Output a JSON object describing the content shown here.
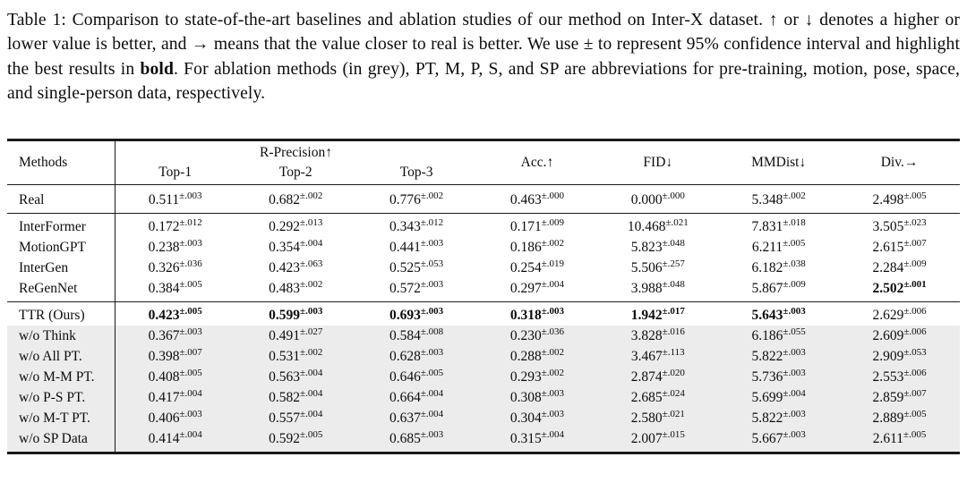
{
  "caption": {
    "part1": "Table 1: Comparison to state-of-the-art baselines and ablation studies of our method on Inter-X dataset. ↑ or ↓ denotes a higher or lower value is better, and → means that the value closer to real is better. We use ± to represent 95% confidence interval and highlight the best results in ",
    "bold_word": "bold",
    "part2": ". For ablation methods (in grey), PT, M, P, S, and SP are abbreviations for pre-training, motion, pose, space, and single-person data, respectively."
  },
  "table": {
    "methods_header": "Methods",
    "group_header": "R-Precision↑",
    "sub_headers": [
      "Top-1",
      "Top-2",
      "Top-3"
    ],
    "metric_headers": [
      "Acc.↑",
      "FID↓",
      "MMDist↓",
      "Div.→"
    ],
    "colors": {
      "ablation_row_bg": "#ececec",
      "rule_color": "#1a1a1a"
    },
    "chart_data": {
      "type": "table",
      "title": "Comparison to state-of-the-art baselines and ablation studies on Inter-X",
      "columns": [
        "Methods",
        "Top-1",
        "Top-2",
        "Top-3",
        "Acc.↑",
        "FID↓",
        "MMDist↓",
        "Div.→"
      ]
    },
    "rows": [
      {
        "method": "Real",
        "section": "real",
        "grey": false,
        "rule_above": false,
        "cells": [
          {
            "v": "0.511",
            "ci": "±.003",
            "b": false
          },
          {
            "v": "0.682",
            "ci": "±.002",
            "b": false
          },
          {
            "v": "0.776",
            "ci": "±.002",
            "b": false
          },
          {
            "v": "0.463",
            "ci": "±.000",
            "b": false
          },
          {
            "v": "0.000",
            "ci": "±.000",
            "b": false
          },
          {
            "v": "5.348",
            "ci": "±.002",
            "b": false
          },
          {
            "v": "2.498",
            "ci": "±.005",
            "b": false
          }
        ]
      },
      {
        "method": "InterFormer",
        "section": "baseline",
        "grey": false,
        "rule_above": true,
        "cells": [
          {
            "v": "0.172",
            "ci": "±.012",
            "b": false
          },
          {
            "v": "0.292",
            "ci": "±.013",
            "b": false
          },
          {
            "v": "0.343",
            "ci": "±.012",
            "b": false
          },
          {
            "v": "0.171",
            "ci": "±.009",
            "b": false
          },
          {
            "v": "10.468",
            "ci": "±.021",
            "b": false
          },
          {
            "v": "7.831",
            "ci": "±.018",
            "b": false
          },
          {
            "v": "3.505",
            "ci": "±.023",
            "b": false
          }
        ]
      },
      {
        "method": "MotionGPT",
        "section": "baseline",
        "grey": false,
        "rule_above": false,
        "cells": [
          {
            "v": "0.238",
            "ci": "±.003",
            "b": false
          },
          {
            "v": "0.354",
            "ci": "±.004",
            "b": false
          },
          {
            "v": "0.441",
            "ci": "±.003",
            "b": false
          },
          {
            "v": "0.186",
            "ci": "±.002",
            "b": false
          },
          {
            "v": "5.823",
            "ci": "±.048",
            "b": false
          },
          {
            "v": "6.211",
            "ci": "±.005",
            "b": false
          },
          {
            "v": "2.615",
            "ci": "±.007",
            "b": false
          }
        ]
      },
      {
        "method": "InterGen",
        "section": "baseline",
        "grey": false,
        "rule_above": false,
        "cells": [
          {
            "v": "0.326",
            "ci": "±.036",
            "b": false
          },
          {
            "v": "0.423",
            "ci": "±.063",
            "b": false
          },
          {
            "v": "0.525",
            "ci": "±.053",
            "b": false
          },
          {
            "v": "0.254",
            "ci": "±.019",
            "b": false
          },
          {
            "v": "5.506",
            "ci": "±.257",
            "b": false
          },
          {
            "v": "6.182",
            "ci": "±.038",
            "b": false
          },
          {
            "v": "2.284",
            "ci": "±.009",
            "b": false
          }
        ]
      },
      {
        "method": "ReGenNet",
        "section": "baseline",
        "grey": false,
        "rule_above": false,
        "cells": [
          {
            "v": "0.384",
            "ci": "±.005",
            "b": false
          },
          {
            "v": "0.483",
            "ci": "±.002",
            "b": false
          },
          {
            "v": "0.572",
            "ci": "±.003",
            "b": false
          },
          {
            "v": "0.297",
            "ci": "±.004",
            "b": false
          },
          {
            "v": "3.988",
            "ci": "±.048",
            "b": false
          },
          {
            "v": "5.867",
            "ci": "±.009",
            "b": false
          },
          {
            "v": "2.502",
            "ci": "±.001",
            "b": true
          }
        ]
      },
      {
        "method": "TTR (Ours)",
        "section": "ours",
        "grey": false,
        "rule_above": true,
        "cells": [
          {
            "v": "0.423",
            "ci": "±.005",
            "b": true
          },
          {
            "v": "0.599",
            "ci": "±.003",
            "b": true
          },
          {
            "v": "0.693",
            "ci": "±.003",
            "b": true
          },
          {
            "v": "0.318",
            "ci": "±.003",
            "b": true
          },
          {
            "v": "1.942",
            "ci": "±.017",
            "b": true
          },
          {
            "v": "5.643",
            "ci": "±.003",
            "b": true
          },
          {
            "v": "2.629",
            "ci": "±.006",
            "b": false
          }
        ]
      },
      {
        "method": "w/o Think",
        "section": "ablation",
        "grey": true,
        "rule_above": false,
        "cells": [
          {
            "v": "0.367",
            "ci": "±.003",
            "b": false
          },
          {
            "v": "0.491",
            "ci": "±.027",
            "b": false
          },
          {
            "v": "0.584",
            "ci": "±.008",
            "b": false
          },
          {
            "v": "0.230",
            "ci": "±.036",
            "b": false
          },
          {
            "v": "3.828",
            "ci": "±.016",
            "b": false
          },
          {
            "v": "6.186",
            "ci": "±.055",
            "b": false
          },
          {
            "v": "2.609",
            "ci": "±.006",
            "b": false
          }
        ]
      },
      {
        "method": "w/o All PT.",
        "section": "ablation",
        "grey": true,
        "rule_above": false,
        "cells": [
          {
            "v": "0.398",
            "ci": "±.007",
            "b": false
          },
          {
            "v": "0.531",
            "ci": "±.002",
            "b": false
          },
          {
            "v": "0.628",
            "ci": "±.003",
            "b": false
          },
          {
            "v": "0.288",
            "ci": "±.002",
            "b": false
          },
          {
            "v": "3.467",
            "ci": "±.113",
            "b": false
          },
          {
            "v": "5.822",
            "ci": "±.003",
            "b": false
          },
          {
            "v": "2.909",
            "ci": "±.053",
            "b": false
          }
        ]
      },
      {
        "method": "w/o M-M PT.",
        "section": "ablation",
        "grey": true,
        "rule_above": false,
        "cells": [
          {
            "v": "0.408",
            "ci": "±.005",
            "b": false
          },
          {
            "v": "0.563",
            "ci": "±.004",
            "b": false
          },
          {
            "v": "0.646",
            "ci": "±.005",
            "b": false
          },
          {
            "v": "0.293",
            "ci": "±.002",
            "b": false
          },
          {
            "v": "2.874",
            "ci": "±.020",
            "b": false
          },
          {
            "v": "5.736",
            "ci": "±.003",
            "b": false
          },
          {
            "v": "2.553",
            "ci": "±.006",
            "b": false
          }
        ]
      },
      {
        "method": "w/o P-S PT.",
        "section": "ablation",
        "grey": true,
        "rule_above": false,
        "cells": [
          {
            "v": "0.417",
            "ci": "±.004",
            "b": false
          },
          {
            "v": "0.582",
            "ci": "±.004",
            "b": false
          },
          {
            "v": "0.664",
            "ci": "±.004",
            "b": false
          },
          {
            "v": "0.308",
            "ci": "±.003",
            "b": false
          },
          {
            "v": "2.685",
            "ci": "±.024",
            "b": false
          },
          {
            "v": "5.699",
            "ci": "±.004",
            "b": false
          },
          {
            "v": "2.859",
            "ci": "±.007",
            "b": false
          }
        ]
      },
      {
        "method": "w/o M-T PT.",
        "section": "ablation",
        "grey": true,
        "rule_above": false,
        "cells": [
          {
            "v": "0.406",
            "ci": "±.003",
            "b": false
          },
          {
            "v": "0.557",
            "ci": "±.004",
            "b": false
          },
          {
            "v": "0.637",
            "ci": "±.004",
            "b": false
          },
          {
            "v": "0.304",
            "ci": "±.003",
            "b": false
          },
          {
            "v": "2.580",
            "ci": "±.021",
            "b": false
          },
          {
            "v": "5.822",
            "ci": "±.003",
            "b": false
          },
          {
            "v": "2.889",
            "ci": "±.005",
            "b": false
          }
        ]
      },
      {
        "method": "w/o SP Data",
        "section": "ablation",
        "grey": true,
        "rule_above": false,
        "cells": [
          {
            "v": "0.414",
            "ci": "±.004",
            "b": false
          },
          {
            "v": "0.592",
            "ci": "±.005",
            "b": false
          },
          {
            "v": "0.685",
            "ci": "±.003",
            "b": false
          },
          {
            "v": "0.315",
            "ci": "±.004",
            "b": false
          },
          {
            "v": "2.007",
            "ci": "±.015",
            "b": false
          },
          {
            "v": "5.667",
            "ci": "±.003",
            "b": false
          },
          {
            "v": "2.611",
            "ci": "±.005",
            "b": false
          }
        ]
      }
    ]
  }
}
